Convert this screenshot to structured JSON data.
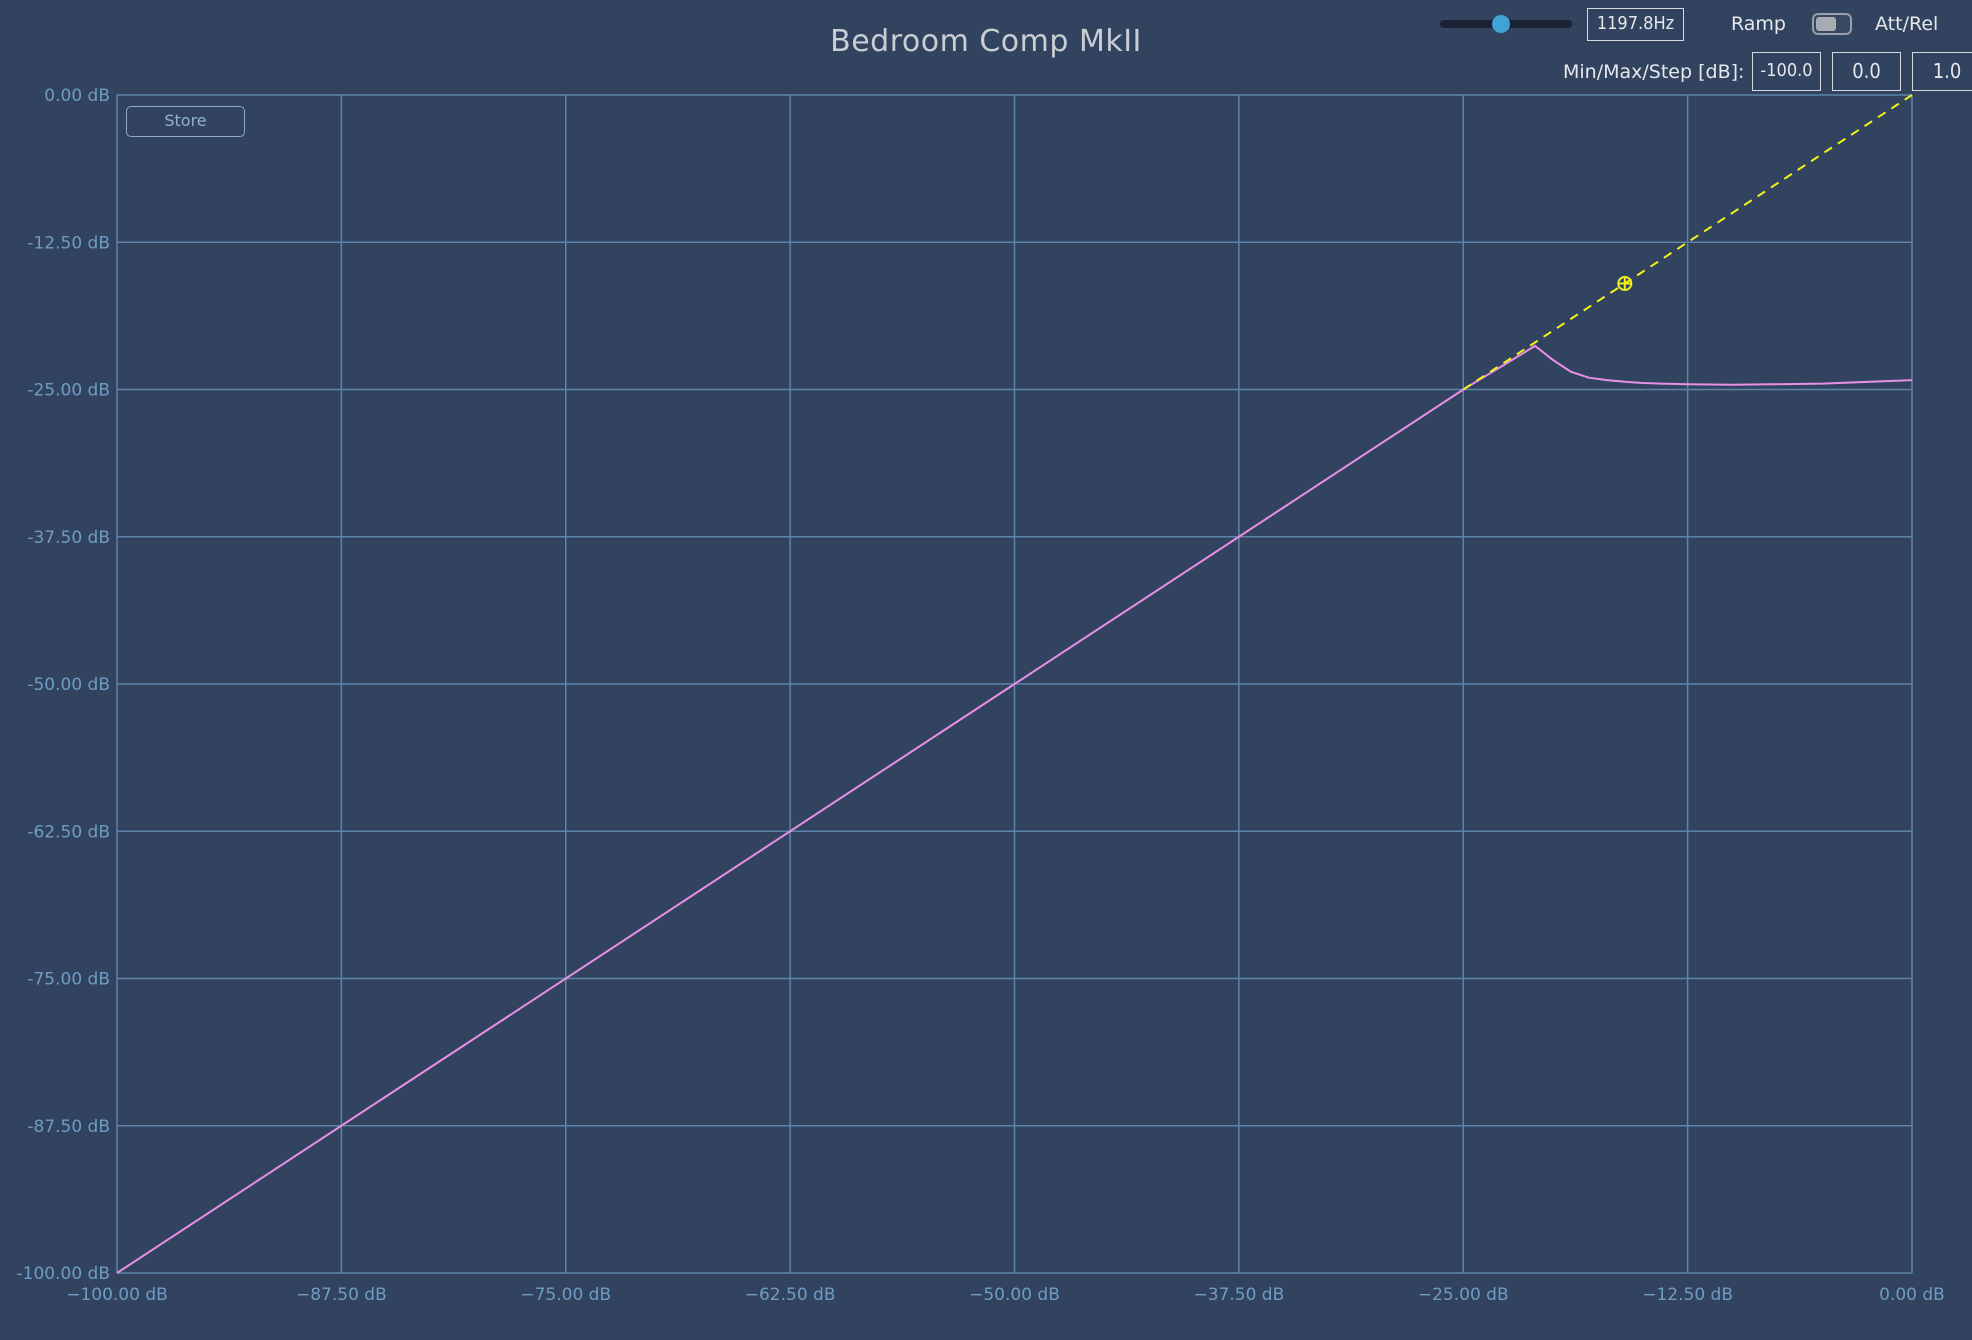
{
  "app": {
    "title": "Bedroom Comp MkII"
  },
  "toolbar": {
    "frequency_value": "1197.8Hz",
    "frequency_slider_fraction": 0.46,
    "ramp_label": "Ramp",
    "att_rel_label": "Att/Rel",
    "att_rel_toggle_on": false,
    "min_max_step_label": "Min/Max/Step [dB]:",
    "min_value": "-100.0",
    "max_value": "0.0",
    "step_value": "1.0"
  },
  "store_label": "Store",
  "colors": {
    "background": "#32435f",
    "grid": "#5d84aa",
    "tick_label": "#6f9cc2",
    "response_curve": "#e88fe6",
    "reference_line": "#f2f21a",
    "accent": "#3fa3d8"
  },
  "chart_data": {
    "type": "line",
    "title": "",
    "xlabel": "",
    "ylabel": "",
    "xlim": [
      -100,
      0
    ],
    "ylim": [
      -100,
      0
    ],
    "grid": true,
    "x_ticks": [
      -100,
      -87.5,
      -75,
      -62.5,
      -50,
      -37.5,
      -25,
      -12.5,
      0
    ],
    "y_ticks": [
      0,
      -12.5,
      -25,
      -37.5,
      -50,
      -62.5,
      -75,
      -87.5,
      -100
    ],
    "x_tick_labels": [
      "−100.00 dB",
      "−87.50 dB",
      "−75.00 dB",
      "−62.50 dB",
      "−50.00 dB",
      "−37.50 dB",
      "−25.00 dB",
      "−12.50 dB",
      "0.00 dB"
    ],
    "y_tick_labels": [
      "0.00 dB",
      "-12.50 dB",
      "-25.00 dB",
      "-37.50 dB",
      "-50.00 dB",
      "-62.50 dB",
      "-75.00 dB",
      "-87.50 dB",
      "-100.00 dB"
    ],
    "series": [
      {
        "style": "solid",
        "color": "#e88fe6",
        "x": [
          -100,
          -25,
          -22.5,
          -21,
          -20,
          -19,
          -18,
          -17,
          -16,
          -15,
          -14,
          -12.5,
          -10,
          -5,
          0
        ],
        "y": [
          -100,
          -25,
          -22.7,
          -21.3,
          -22.5,
          -23.5,
          -24,
          -24.2,
          -24.35,
          -24.45,
          -24.5,
          -24.55,
          -24.6,
          -24.5,
          -24.2
        ]
      },
      {
        "style": "dashed",
        "color": "#f2f21a",
        "x": [
          -25,
          0
        ],
        "y": [
          -25,
          0
        ]
      }
    ],
    "handle": {
      "x": -16.0,
      "y": -16.0
    }
  }
}
